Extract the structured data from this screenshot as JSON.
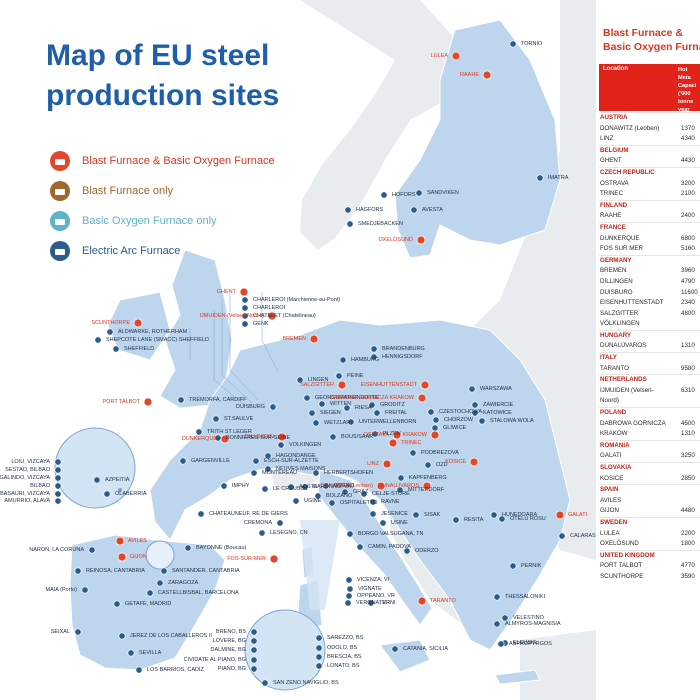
{
  "title_lines": [
    "Map of EU steel",
    "production sites"
  ],
  "colors": {
    "sea": "#ffffff",
    "land_eu": "#bdd6ee",
    "land_other": "#e9ecef",
    "bf_bof": "#e2462b",
    "bf_only": "#a0682a",
    "bof_only": "#5fb3c7",
    "eaf": "#2b5c8a",
    "title": "#1f5fa8",
    "accent_red": "#e2231a"
  },
  "legend": [
    {
      "label": "Blast Furnace &  Basic Oxygen Furnace",
      "color": "#e2462b",
      "text_color": "#d8391f",
      "icon": "factory-icon"
    },
    {
      "label": "Blast Furnace only",
      "color": "#a0682a",
      "text_color": "#a0682a",
      "icon": "factory-icon"
    },
    {
      "label": "Basic Oxygen Furnace only",
      "color": "#5fb3c7",
      "text_color": "#5fb3c7",
      "icon": "factory-icon"
    },
    {
      "label": "Electric Arc Furnace",
      "color": "#2b5c8a",
      "text_color": "#2b5c8a",
      "icon": "factory-icon"
    }
  ],
  "map_labels": [
    "TORNIO",
    "LULEA",
    "RAAHE",
    "IMATRA",
    "HOFORS",
    "SANDVIKEN",
    "AVESTA",
    "HAGFORS",
    "SMEDJEBACKEN",
    "OXELOSUND",
    "GHENT",
    "CHARLEROI (Marchienne-au-Pont)",
    "CHARLEROI",
    "CHATELET (Chatelineau)",
    "GENK",
    "SCUNTHORPE",
    "ALDWARKE, ROTHERHAM",
    "SHEPCOTE LANE (SMACC) SHEFFIELD",
    "SHEFFIELD",
    "PORT TALBOT",
    "TREMORFA, CARDIFF",
    "IJMUIDEN (Velsen-Noord)",
    "BREMEN",
    "HAMBURG",
    "BRANDENBURG",
    "HENNIGSDORF",
    "SALZGITTER",
    "PEINE",
    "EISENHUTTENSTADT",
    "LINGEN",
    "GEORGSMARIENHUTTE",
    "DUISBURG",
    "WITTEN",
    "SIEGEN",
    "WETZLAR",
    "RIESA",
    "GRODITZ",
    "FREITAL",
    "WARSZAWA",
    "DABROWA GORNICZA KRAKOW",
    "ZAWIERCIE",
    "KATOWICE",
    "STALOWA WOLA",
    "CZESTOCHOWA",
    "CHORZOW",
    "GLIWICE",
    "KRAKOW",
    "OSTRAVA",
    "TRINEC",
    "DUNKERQUE",
    "DILLINGEN",
    "VOLKINGEN",
    "BOUS/SAAR",
    "UNTERWELLENBORN",
    "PLZEN",
    "ST.SAULVE",
    "TRITH ST LEGER",
    "BONNIERES-SUR-SEINE",
    "ESCH-SUR-ALZETTE",
    "HAGONDANGE",
    "GARGENVILLE",
    "NEUVES MAISONS",
    "HERBERTSHOFEN",
    "MONTEREAU",
    "LINZ",
    "PODBREZOVA",
    "KOSICE",
    "OZD",
    "IMPHY",
    "LE CREUSOT",
    "CARONNO, VA",
    "KAPFENBERG",
    "DONAWITZ (Leoben)",
    "MITTERDORF",
    "DUNAUJVAROS",
    "GRAZ",
    "CELJE-STORE",
    "RAVNE",
    "JESENICE",
    "SISAK",
    "ODERO",
    "UGINE",
    "AOSTA",
    "BOLZANO",
    "OSPITALETTO",
    "RESITA",
    "HUNEDOARA",
    "OTELU ROSU",
    "GALATI",
    "CALARASI",
    "CHATEAUNEUF, RE DE GIERS",
    "FOS-SUR-MER",
    "LESEGNO, CN",
    "CREMONA",
    "USINE",
    "BORGO VALSUGANA, TN",
    "CAMIN, PADOVA",
    "ODERZO",
    "VICENZA, VI",
    "VERONA, VR",
    "VIGNATE",
    "OPPEANO, VR",
    "TERNI",
    "TARANTO",
    "PERNIK",
    "THESSALONIKI",
    "VELESTINO",
    "ALMYROS-MAGNISIA",
    "ELEUSIS",
    "ASPROPYRGOS",
    "CATANIA, SICILIA",
    "LOIU, VIZCAYA",
    "SESTAO, BILBAO",
    "GALINDO, VIZCAYA",
    "BILBAO",
    "BASAURI, VIZCAYA",
    "AMURRIO, ALAVA",
    "AZPEITIA",
    "OLABERRIA",
    "AVILES",
    "GIJON",
    "NARON, LA CORUNA",
    "SANTANDER, CANTABRIA",
    "REINOSA, CANTABRIA",
    "BAYONNE (Boucau)",
    "ZARAGOZA",
    "CASTELLBISBAL, BARCELONA",
    "MAIA (Porto)",
    "GETAFE, MADRID",
    "SEIXAL",
    "JEREZ DE LOS CABALLEROS II",
    "SEVILLA",
    "LOS BARRIOS, CADIZ",
    "BRENO, BS",
    "LOVERE, BG",
    "DALMINE, BG",
    "CIVIDATE AL PIANO, BG",
    "PIANO, BG",
    "SAREZZO, BS",
    "ODOLO, BS",
    "BRESCIA, BS",
    "LONATO, BS",
    "SAN ZENO NAVIGLIO, BS"
  ],
  "panel": {
    "title_lines": [
      "Blast Furnace &",
      "Basic Oxygen Furna"
    ],
    "col_location": "Location",
    "col_capacity_lines": [
      "Hot",
      "Meta",
      "Capaci",
      "('000",
      "tonne",
      "year"
    ],
    "rows": [
      {
        "type": "country",
        "name": "AUSTRIA"
      },
      {
        "type": "site",
        "name": "DONAWITZ (Leoben)",
        "value": "1370"
      },
      {
        "type": "site",
        "name": "LINZ",
        "value": "4340"
      },
      {
        "type": "country",
        "name": "BELGIUM"
      },
      {
        "type": "site",
        "name": "GHENT",
        "value": "4430"
      },
      {
        "type": "country",
        "name": "CZECH REPUBLIC"
      },
      {
        "type": "site",
        "name": "OSTRAVA",
        "value": "3200"
      },
      {
        "type": "site",
        "name": "TRINEC",
        "value": "2100"
      },
      {
        "type": "country",
        "name": "FINLAND"
      },
      {
        "type": "site",
        "name": "RAAHE",
        "value": "2400"
      },
      {
        "type": "country",
        "name": "FRANCE"
      },
      {
        "type": "site",
        "name": "DUNKERQUE",
        "value": "6800"
      },
      {
        "type": "site",
        "name": "FOS SUR MER",
        "value": "5160"
      },
      {
        "type": "country",
        "name": "GERMANY"
      },
      {
        "type": "site",
        "name": "BREMEN",
        "value": "3960"
      },
      {
        "type": "site",
        "name": "DILLINGEN",
        "value": "4790"
      },
      {
        "type": "site",
        "name": "DUISBURG",
        "value": "11600"
      },
      {
        "type": "site",
        "name": "EISENHUTTENSTADT",
        "value": "2340"
      },
      {
        "type": "site",
        "name": "SALZGITTER",
        "value": "4800"
      },
      {
        "type": "site",
        "name": "VÖLKLINGEN",
        "value": ""
      },
      {
        "type": "country",
        "name": "HUNGARY"
      },
      {
        "type": "site",
        "name": "DUNAUJVAROS",
        "value": "1310"
      },
      {
        "type": "country",
        "name": "ITALY"
      },
      {
        "type": "site",
        "name": "TARANTO",
        "value": "9580"
      },
      {
        "type": "country",
        "name": "NETHERLANDS"
      },
      {
        "type": "site",
        "name": "IJMUIDEN (Velsen-",
        "value": "6310"
      },
      {
        "type": "site",
        "name": "Noord)",
        "value": ""
      },
      {
        "type": "country",
        "name": "POLAND"
      },
      {
        "type": "site",
        "name": "DABROWA GORNICZA",
        "value": "4500"
      },
      {
        "type": "site",
        "name": "KRAKOW",
        "value": "1310"
      },
      {
        "type": "country",
        "name": "ROMANIA"
      },
      {
        "type": "site",
        "name": "GALATI",
        "value": "3250"
      },
      {
        "type": "country",
        "name": "SLOVAKIA"
      },
      {
        "type": "site",
        "name": "KOSICE",
        "value": "2850"
      },
      {
        "type": "country",
        "name": "SPAIN"
      },
      {
        "type": "site",
        "name": "AVILES",
        "value": ""
      },
      {
        "type": "site",
        "name": "GIJON",
        "value": "4480"
      },
      {
        "type": "country",
        "name": "SWEDEN"
      },
      {
        "type": "site",
        "name": "LULEA",
        "value": "2200"
      },
      {
        "type": "site",
        "name": "OXELÖSUND",
        "value": "1800"
      },
      {
        "type": "country",
        "name": "UNITED KINGDOM"
      },
      {
        "type": "site",
        "name": "PORT TALBOT",
        "value": "4770"
      },
      {
        "type": "site",
        "name": "SCUNTHORPE",
        "value": "3590"
      }
    ]
  }
}
